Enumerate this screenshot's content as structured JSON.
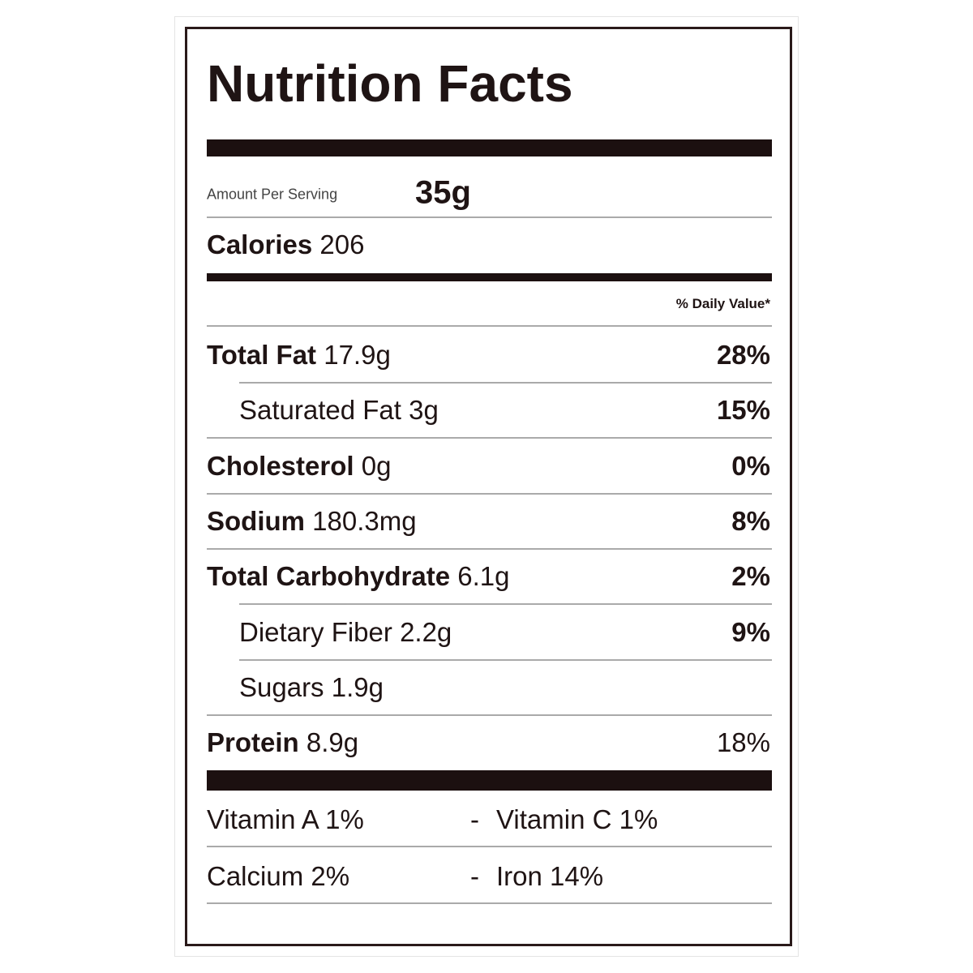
{
  "title": "Nutrition Facts",
  "serving": {
    "label": "Amount Per Serving",
    "value": "35g"
  },
  "calories": {
    "label": "Calories",
    "value": "206"
  },
  "daily_value_header": "% Daily Value*",
  "nutrients": [
    {
      "name": "Total Fat",
      "amount": "17.9g",
      "daily_value": "28%"
    },
    {
      "name": "Saturated Fat",
      "amount": "3g",
      "daily_value": "15%"
    },
    {
      "name": "Cholesterol",
      "amount": "0g",
      "daily_value": "0%"
    },
    {
      "name": "Sodium",
      "amount": "180.3mg",
      "daily_value": "8%"
    },
    {
      "name": "Total Carbohydrate",
      "amount": "6.1g",
      "daily_value": "2%"
    },
    {
      "name": "Dietary Fiber",
      "amount": "2.2g",
      "daily_value": "9%"
    },
    {
      "name": "Sugars",
      "amount": "1.9g"
    },
    {
      "name": "Protein",
      "amount": "8.9g",
      "daily_value": "18%"
    }
  ],
  "separator": "-",
  "vitamins": [
    [
      "Vitamin A 1%",
      "Vitamin C 1%"
    ],
    [
      "Calcium 2%",
      "Iron 14%"
    ]
  ]
}
